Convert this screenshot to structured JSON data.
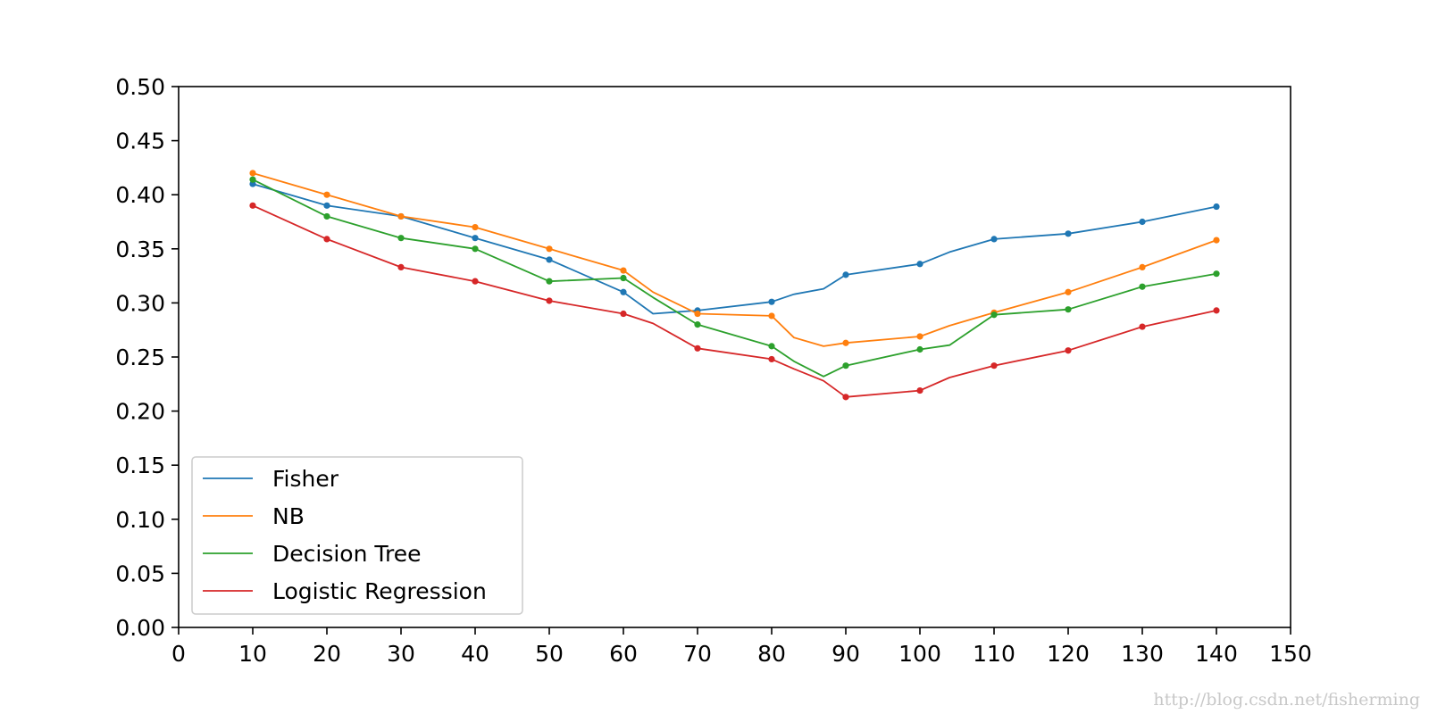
{
  "chart_data": {
    "type": "line",
    "title": "",
    "xlabel": "",
    "ylabel": "",
    "xlim": [
      0,
      150
    ],
    "ylim": [
      0.0,
      0.5
    ],
    "x_ticks": [
      0,
      10,
      20,
      30,
      40,
      50,
      60,
      70,
      80,
      90,
      100,
      110,
      120,
      130,
      140,
      150
    ],
    "y_ticks": [
      0.0,
      0.05,
      0.1,
      0.15,
      0.2,
      0.25,
      0.3,
      0.35,
      0.4,
      0.45,
      0.5
    ],
    "x_tick_labels": [
      "0",
      "10",
      "20",
      "30",
      "40",
      "50",
      "60",
      "70",
      "80",
      "90",
      "100",
      "110",
      "120",
      "130",
      "140",
      "150"
    ],
    "y_tick_labels": [
      "0.00",
      "0.05",
      "0.10",
      "0.15",
      "0.20",
      "0.25",
      "0.30",
      "0.35",
      "0.40",
      "0.45",
      "0.50"
    ],
    "grid": false,
    "legend_position": "lower-left",
    "series": [
      {
        "name": "Fisher",
        "color": "#1f77b4",
        "line_x": [
          10,
          20,
          30,
          40,
          50,
          60,
          64,
          70,
          80,
          83,
          87,
          90,
          100,
          104,
          110,
          120,
          130,
          140
        ],
        "line_y": [
          0.41,
          0.39,
          0.38,
          0.36,
          0.34,
          0.31,
          0.29,
          0.293,
          0.301,
          0.308,
          0.313,
          0.326,
          0.336,
          0.347,
          0.359,
          0.364,
          0.375,
          0.389
        ],
        "marker_x": [
          10,
          20,
          30,
          40,
          50,
          60,
          70,
          80,
          90,
          100,
          110,
          120,
          130,
          140
        ],
        "marker_y": [
          0.41,
          0.39,
          0.38,
          0.36,
          0.34,
          0.31,
          0.293,
          0.301,
          0.326,
          0.336,
          0.359,
          0.364,
          0.375,
          0.389
        ]
      },
      {
        "name": "NB",
        "color": "#ff7f0e",
        "line_x": [
          10,
          20,
          30,
          40,
          50,
          60,
          64,
          70,
          80,
          83,
          87,
          90,
          100,
          104,
          110,
          120,
          130,
          140
        ],
        "line_y": [
          0.42,
          0.4,
          0.38,
          0.37,
          0.35,
          0.33,
          0.31,
          0.29,
          0.288,
          0.268,
          0.26,
          0.263,
          0.269,
          0.279,
          0.291,
          0.31,
          0.333,
          0.358
        ],
        "marker_x": [
          10,
          20,
          30,
          40,
          50,
          60,
          70,
          80,
          90,
          100,
          110,
          120,
          130,
          140
        ],
        "marker_y": [
          0.42,
          0.4,
          0.38,
          0.37,
          0.35,
          0.33,
          0.29,
          0.288,
          0.263,
          0.269,
          0.291,
          0.31,
          0.333,
          0.358
        ]
      },
      {
        "name": "Decision Tree",
        "color": "#2ca02c",
        "line_x": [
          10,
          20,
          30,
          40,
          50,
          60,
          64,
          70,
          80,
          83,
          87,
          90,
          100,
          104,
          110,
          120,
          130,
          140
        ],
        "line_y": [
          0.414,
          0.38,
          0.36,
          0.35,
          0.32,
          0.323,
          0.305,
          0.28,
          0.26,
          0.246,
          0.232,
          0.242,
          0.257,
          0.261,
          0.289,
          0.294,
          0.315,
          0.327
        ],
        "marker_x": [
          10,
          20,
          30,
          40,
          50,
          60,
          70,
          80,
          90,
          100,
          110,
          120,
          130,
          140
        ],
        "marker_y": [
          0.414,
          0.38,
          0.36,
          0.35,
          0.32,
          0.323,
          0.28,
          0.26,
          0.242,
          0.257,
          0.289,
          0.294,
          0.315,
          0.327
        ]
      },
      {
        "name": "Logistic Regression",
        "color": "#d62728",
        "line_x": [
          10,
          20,
          30,
          40,
          50,
          60,
          64,
          70,
          80,
          83,
          87,
          90,
          100,
          104,
          110,
          120,
          130,
          140
        ],
        "line_y": [
          0.39,
          0.359,
          0.333,
          0.32,
          0.302,
          0.29,
          0.281,
          0.258,
          0.248,
          0.239,
          0.228,
          0.213,
          0.219,
          0.231,
          0.242,
          0.256,
          0.278,
          0.293
        ],
        "marker_x": [
          10,
          20,
          30,
          40,
          50,
          60,
          70,
          80,
          90,
          100,
          110,
          120,
          130,
          140
        ],
        "marker_y": [
          0.39,
          0.359,
          0.333,
          0.32,
          0.302,
          0.29,
          0.258,
          0.248,
          0.213,
          0.219,
          0.242,
          0.256,
          0.278,
          0.293
        ]
      }
    ]
  },
  "watermark": "http://blog.csdn.net/fisherming"
}
